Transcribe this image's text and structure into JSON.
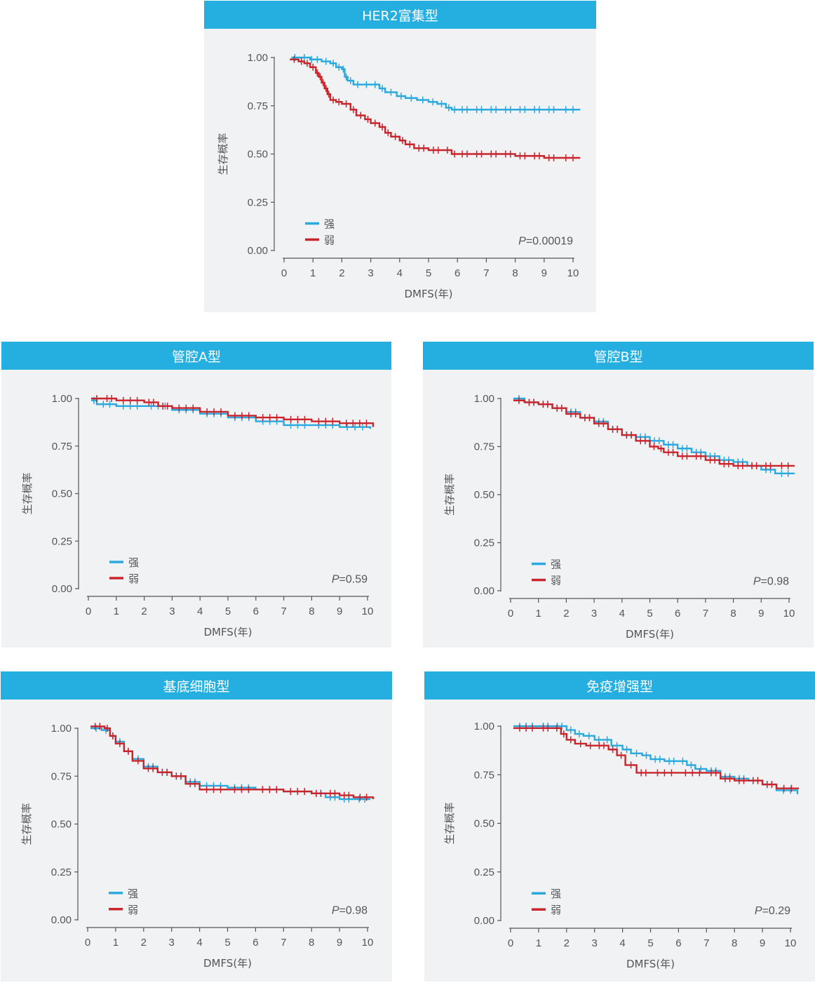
{
  "chart_data": [
    {
      "type": "line",
      "title": "HER2富集型",
      "xlabel": "DMFS(年)",
      "ylabel": "生存概率",
      "xlim": [
        0,
        10
      ],
      "ylim": [
        0,
        1
      ],
      "x_ticks": [
        "0",
        "1",
        "2",
        "3",
        "4",
        "5",
        "6",
        "7",
        "8",
        "9",
        "10"
      ],
      "y_ticks": [
        "0.00",
        "0.25",
        "0.50",
        "0.75",
        "1.00"
      ],
      "legend_position": "bottom-left",
      "p_prefix": "P",
      "p_rest": "=0.00019",
      "series": [
        {
          "name": "强",
          "color": "#2aa9de",
          "x": [
            0.25,
            0.5,
            0.9,
            1.0,
            1.3,
            1.6,
            1.8,
            2.0,
            2.1,
            2.2,
            2.4,
            2.7,
            3.0,
            3.3,
            3.5,
            3.9,
            4.2,
            4.6,
            5.0,
            5.3,
            5.6,
            5.8,
            6.0,
            6.5,
            7.0,
            7.5,
            8.0,
            8.5,
            9.0,
            9.5,
            10.25
          ],
          "y": [
            1.0,
            1.0,
            0.99,
            0.99,
            0.98,
            0.97,
            0.95,
            0.94,
            0.9,
            0.88,
            0.86,
            0.86,
            0.86,
            0.84,
            0.82,
            0.8,
            0.79,
            0.78,
            0.77,
            0.76,
            0.74,
            0.73,
            0.73,
            0.73,
            0.73,
            0.73,
            0.73,
            0.73,
            0.73,
            0.73,
            0.73
          ]
        },
        {
          "name": "弱",
          "color": "#c8252c",
          "x": [
            0.2,
            0.5,
            0.7,
            0.9,
            1.1,
            1.2,
            1.3,
            1.4,
            1.5,
            1.6,
            1.8,
            2.0,
            2.3,
            2.5,
            2.8,
            3.0,
            3.3,
            3.5,
            3.7,
            4.0,
            4.2,
            4.5,
            5.0,
            5.5,
            5.8,
            6.0,
            6.5,
            7.0,
            7.5,
            8.0,
            8.5,
            9.0,
            9.5,
            10.25
          ],
          "y": [
            0.99,
            0.98,
            0.97,
            0.95,
            0.92,
            0.9,
            0.87,
            0.84,
            0.81,
            0.78,
            0.77,
            0.76,
            0.73,
            0.7,
            0.68,
            0.66,
            0.64,
            0.61,
            0.59,
            0.57,
            0.55,
            0.53,
            0.52,
            0.52,
            0.5,
            0.5,
            0.5,
            0.5,
            0.5,
            0.49,
            0.49,
            0.48,
            0.48,
            0.48
          ]
        }
      ]
    },
    {
      "type": "line",
      "title": "管腔A型",
      "xlabel": "DMFS(年)",
      "ylabel": "生存概率",
      "xlim": [
        0,
        10
      ],
      "ylim": [
        0,
        1
      ],
      "x_ticks": [
        "0",
        "1",
        "2",
        "3",
        "4",
        "5",
        "6",
        "7",
        "8",
        "9",
        "10"
      ],
      "y_ticks": [
        "0.00",
        "0.25",
        "0.50",
        "0.75",
        "1.00"
      ],
      "legend_position": "bottom-left",
      "p_prefix": "P",
      "p_rest": "=0.59",
      "series": [
        {
          "name": "强",
          "color": "#2aa9de",
          "x": [
            0.1,
            0.3,
            1.0,
            2.0,
            3.0,
            4.0,
            5.0,
            6.0,
            7.0,
            8.0,
            9.0,
            10.1
          ],
          "y": [
            0.99,
            0.97,
            0.96,
            0.96,
            0.94,
            0.92,
            0.9,
            0.88,
            0.86,
            0.86,
            0.85,
            0.84
          ]
        },
        {
          "name": "弱",
          "color": "#c8252c",
          "x": [
            0.1,
            0.5,
            1.0,
            2.0,
            2.5,
            3.0,
            4.0,
            5.0,
            6.0,
            7.0,
            8.0,
            9.0,
            10.2
          ],
          "y": [
            1.0,
            1.0,
            0.99,
            0.98,
            0.96,
            0.95,
            0.93,
            0.91,
            0.9,
            0.89,
            0.88,
            0.87,
            0.85
          ]
        }
      ]
    },
    {
      "type": "line",
      "title": "管腔B型",
      "xlabel": "DMFS(年)",
      "ylabel": "生存概率",
      "xlim": [
        0,
        10
      ],
      "ylim": [
        0,
        1
      ],
      "x_ticks": [
        "0",
        "1",
        "2",
        "3",
        "4",
        "5",
        "6",
        "7",
        "8",
        "9",
        "10"
      ],
      "y_ticks": [
        "0.00",
        "0.25",
        "0.50",
        "0.75",
        "1.00"
      ],
      "legend_position": "bottom-left",
      "p_prefix": "P",
      "p_rest": "=0.98",
      "series": [
        {
          "name": "强",
          "color": "#2aa9de",
          "x": [
            0.1,
            0.5,
            1.0,
            1.5,
            2.0,
            2.5,
            3.0,
            3.5,
            4.0,
            4.5,
            5.0,
            5.5,
            6.0,
            6.5,
            7.0,
            7.5,
            8.0,
            8.5,
            9.0,
            9.5,
            10.2
          ],
          "y": [
            1.0,
            0.98,
            0.97,
            0.95,
            0.93,
            0.9,
            0.88,
            0.84,
            0.81,
            0.8,
            0.78,
            0.76,
            0.74,
            0.72,
            0.7,
            0.68,
            0.67,
            0.65,
            0.63,
            0.61,
            0.61
          ]
        },
        {
          "name": "弱",
          "color": "#c8252c",
          "x": [
            0.1,
            0.5,
            1.0,
            1.5,
            2.0,
            2.5,
            3.0,
            3.5,
            4.0,
            4.5,
            5.0,
            5.3,
            5.5,
            6.0,
            6.5,
            7.0,
            7.5,
            8.0,
            8.5,
            9.0,
            9.5,
            10.2
          ],
          "y": [
            0.99,
            0.98,
            0.97,
            0.95,
            0.92,
            0.9,
            0.87,
            0.84,
            0.81,
            0.78,
            0.75,
            0.74,
            0.72,
            0.7,
            0.7,
            0.68,
            0.66,
            0.65,
            0.65,
            0.65,
            0.65,
            0.65
          ]
        }
      ]
    },
    {
      "type": "line",
      "title": "基底细胞型",
      "xlabel": "DMFS(年)",
      "ylabel": "生存概率",
      "xlim": [
        0,
        10
      ],
      "ylim": [
        0,
        1
      ],
      "x_ticks": [
        "0",
        "1",
        "2",
        "3",
        "4",
        "5",
        "6",
        "7",
        "8",
        "9",
        "10"
      ],
      "y_ticks": [
        "0.00",
        "0.25",
        "0.50",
        "0.75",
        "1.00"
      ],
      "legend_position": "bottom-left",
      "p_prefix": "P",
      "p_rest": "=0.98",
      "series": [
        {
          "name": "强",
          "color": "#2aa9de",
          "x": [
            0.1,
            0.5,
            0.8,
            1.0,
            1.3,
            1.6,
            2.0,
            2.5,
            3.0,
            3.5,
            4.0,
            5.0,
            6.0,
            7.0,
            8.0,
            8.5,
            9.0,
            9.5,
            10.1
          ],
          "y": [
            1.0,
            0.99,
            0.96,
            0.93,
            0.88,
            0.84,
            0.8,
            0.77,
            0.75,
            0.72,
            0.7,
            0.69,
            0.68,
            0.67,
            0.66,
            0.64,
            0.63,
            0.63,
            0.63
          ]
        },
        {
          "name": "弱",
          "color": "#c8252c",
          "x": [
            0.1,
            0.6,
            0.8,
            1.0,
            1.3,
            1.6,
            2.0,
            2.5,
            3.0,
            3.5,
            4.0,
            5.0,
            6.0,
            7.0,
            8.0,
            8.5,
            9.0,
            9.5,
            10.2
          ],
          "y": [
            1.01,
            1.0,
            0.96,
            0.92,
            0.88,
            0.83,
            0.79,
            0.77,
            0.75,
            0.71,
            0.68,
            0.68,
            0.68,
            0.67,
            0.66,
            0.66,
            0.65,
            0.64,
            0.63
          ]
        }
      ]
    },
    {
      "type": "line",
      "title": "免疫增强型",
      "xlabel": "DMFS(年)",
      "ylabel": "生存概率",
      "xlim": [
        0,
        10
      ],
      "ylim": [
        0,
        1
      ],
      "x_ticks": [
        "0",
        "1",
        "2",
        "3",
        "4",
        "5",
        "6",
        "7",
        "8",
        "9",
        "10"
      ],
      "y_ticks": [
        "0.00",
        "0.25",
        "0.50",
        "0.75",
        "1.00"
      ],
      "legend_position": "bottom-left",
      "p_prefix": "P",
      "p_rest": "=0.29",
      "series": [
        {
          "name": "强",
          "color": "#2aa9de",
          "x": [
            0.1,
            1.0,
            1.5,
            2.0,
            2.3,
            2.6,
            3.0,
            3.3,
            3.6,
            4.0,
            4.3,
            4.7,
            5.0,
            5.5,
            6.0,
            6.3,
            6.6,
            7.0,
            7.5,
            8.0,
            8.5,
            9.0,
            9.5,
            10.25
          ],
          "y": [
            1.0,
            1.0,
            1.0,
            0.98,
            0.96,
            0.95,
            0.93,
            0.93,
            0.9,
            0.88,
            0.86,
            0.85,
            0.83,
            0.82,
            0.82,
            0.8,
            0.78,
            0.77,
            0.74,
            0.73,
            0.72,
            0.7,
            0.67,
            0.65
          ]
        },
        {
          "name": "弱",
          "color": "#c8252c",
          "x": [
            0.1,
            1.0,
            1.5,
            1.8,
            2.0,
            2.3,
            2.7,
            3.0,
            3.5,
            3.8,
            4.1,
            4.5,
            5.0,
            6.0,
            7.0,
            7.5,
            8.0,
            8.5,
            9.0,
            9.5,
            10.3
          ],
          "y": [
            0.99,
            0.99,
            0.99,
            0.96,
            0.93,
            0.91,
            0.9,
            0.9,
            0.88,
            0.85,
            0.8,
            0.76,
            0.76,
            0.76,
            0.76,
            0.73,
            0.72,
            0.72,
            0.7,
            0.68,
            0.68
          ]
        }
      ]
    }
  ]
}
